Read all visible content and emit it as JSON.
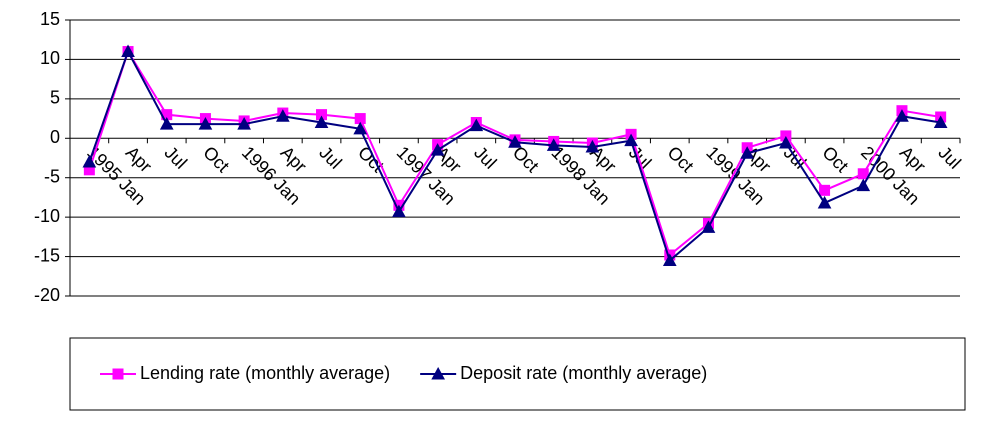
{
  "chart_data": {
    "type": "line",
    "categories": [
      "1995 Jan",
      "Apr",
      "Jul",
      "Oct",
      "1996 Jan",
      "Apr",
      "Jul",
      "Oct",
      "1997 Jan",
      "Apr",
      "Jul",
      "Oct",
      "1998 Jan",
      "Apr",
      "Jul",
      "Oct",
      "1999 Jan",
      "Apr",
      "Jul",
      "Oct",
      "2000 Jan",
      "Apr",
      "Jul"
    ],
    "series": [
      {
        "name": "Lending rate (monthly average)",
        "color": "#ff00ff",
        "marker": "square",
        "values": [
          -4,
          11,
          3,
          2.5,
          2.2,
          3.2,
          3,
          2.5,
          -8.5,
          -0.8,
          2,
          -0.2,
          -0.4,
          -0.6,
          0.5,
          -14.8,
          -10.8,
          -1.2,
          0.3,
          -6.6,
          -4.5,
          3.5,
          2.7
        ]
      },
      {
        "name": "Deposit rate (monthly average)",
        "color": "#000080",
        "marker": "triangle",
        "values": [
          -3,
          11,
          1.8,
          1.8,
          1.8,
          2.8,
          2,
          1.2,
          -9.3,
          -1.5,
          1.6,
          -0.5,
          -0.9,
          -1.1,
          -0.3,
          -15.5,
          -11.3,
          -1.9,
          -0.6,
          -8.2,
          -6,
          2.8,
          2
        ]
      }
    ],
    "ylim": [
      -20,
      15
    ],
    "yticks": [
      -20,
      -15,
      -10,
      -5,
      0,
      5,
      10,
      15
    ],
    "grid": true,
    "legend": "bottom"
  }
}
